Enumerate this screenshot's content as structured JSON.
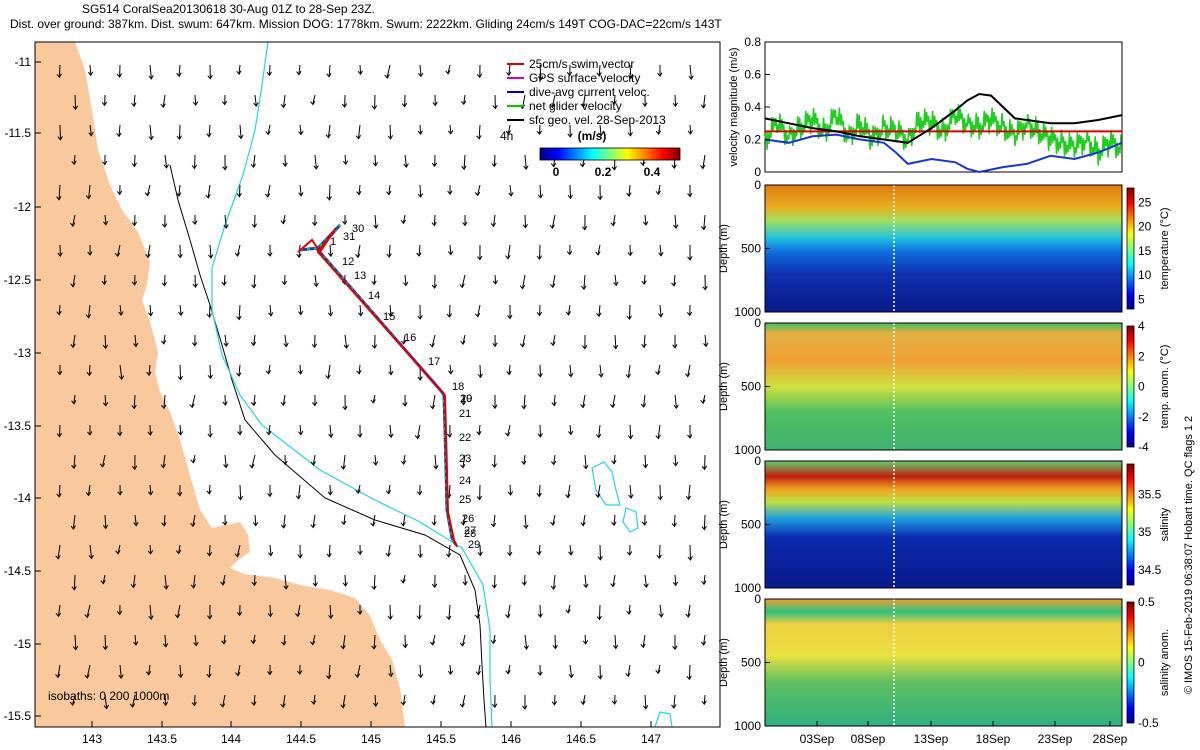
{
  "header": {
    "line1": "SG514 CoralSea20130618 30-Aug 01Z to 28-Sep 23Z.",
    "line2": "Dist. over ground: 387km. Dist. swum: 647km. Mission DOG: 1778km. Swum: 2222km. Gliding 24cm/s 149T COG-DAC=22cm/s 143T"
  },
  "map": {
    "legend": [
      {
        "label": "25cm/s swim vector",
        "color": "#dd0000"
      },
      {
        "label": "GPS surface velocity",
        "color": "#cc00cc"
      },
      {
        "label": "dive-avg current veloc.",
        "color": "#0000cc"
      },
      {
        "label": "net glider velocity",
        "color": "#00cc00"
      },
      {
        "label": "sfc geo. vel. 28-Sep-2013",
        "color": "#000000"
      }
    ],
    "scale_label": "4h",
    "colorbar": {
      "title": "(m/s)",
      "ticks": [
        "0",
        "0.2",
        "0.4"
      ]
    },
    "isobaths_label": "isobaths: 0   200  1000m",
    "xticks": [
      "143",
      "143.5",
      "144",
      "144.5",
      "145",
      "145.5",
      "146",
      "146.5",
      "147"
    ],
    "yticks": [
      "-11",
      "-11.5",
      "-12",
      "-12.5",
      "-13",
      "-13.5",
      "-14",
      "-14.5",
      "-15",
      "-15.5"
    ],
    "day_labels": [
      "30",
      "31",
      "1",
      "12",
      "13",
      "14",
      "15",
      "16",
      "17",
      "18",
      "19",
      "20",
      "21",
      "22",
      "23",
      "24",
      "25",
      "26",
      "27",
      "28",
      "29"
    ],
    "colors": {
      "land": "#f9c89c",
      "isobath200": "#000000",
      "isobath1000": "#22d4e6",
      "track": "#dd0000",
      "dac": "#1a36c8",
      "net": "#22cc22"
    }
  },
  "chart_data": [
    {
      "type": "line",
      "title": "",
      "ylabel": "velocity magnitude (m/s)",
      "ylim": [
        0,
        0.8
      ],
      "yticks": [
        "0",
        "0.2",
        "0.4",
        "0.6",
        "0.8"
      ],
      "xlim_days": [
        0,
        30
      ],
      "series": [
        {
          "name": "sfc geo. vel.",
          "color": "#000000",
          "x": [
            0,
            2,
            4,
            6,
            8,
            10,
            12,
            14,
            16,
            17,
            18,
            19,
            20,
            21,
            22,
            24,
            26,
            28,
            30
          ],
          "values": [
            0.33,
            0.3,
            0.27,
            0.25,
            0.22,
            0.2,
            0.18,
            0.27,
            0.38,
            0.44,
            0.48,
            0.47,
            0.4,
            0.33,
            0.32,
            0.3,
            0.3,
            0.32,
            0.35
          ]
        },
        {
          "name": "swim speed",
          "color": "#dd0000",
          "x": [
            0,
            30
          ],
          "values": [
            0.25,
            0.25
          ]
        },
        {
          "name": "dive-avg current",
          "color": "#1a36c8",
          "x": [
            0,
            2,
            4,
            6,
            8,
            10,
            11,
            12,
            14,
            16,
            17,
            18,
            20,
            22,
            24,
            26,
            28,
            30
          ],
          "values": [
            0.2,
            0.18,
            0.22,
            0.23,
            0.2,
            0.18,
            0.12,
            0.05,
            0.08,
            0.06,
            0.02,
            0.0,
            0.03,
            0.05,
            0.1,
            0.08,
            0.12,
            0.18
          ]
        },
        {
          "name": "net glider velocity",
          "color": "#22cc22",
          "x": [
            0,
            1,
            2,
            3,
            4,
            5,
            6,
            7,
            8,
            9,
            10,
            11,
            12,
            13,
            14,
            15,
            16,
            17,
            18,
            19,
            20,
            21,
            22,
            23,
            24,
            25,
            26,
            27,
            28,
            29,
            30
          ],
          "values": [
            0.2,
            0.3,
            0.22,
            0.28,
            0.32,
            0.25,
            0.35,
            0.22,
            0.3,
            0.2,
            0.28,
            0.25,
            0.2,
            0.32,
            0.3,
            0.25,
            0.35,
            0.3,
            0.28,
            0.32,
            0.28,
            0.22,
            0.3,
            0.25,
            0.2,
            0.18,
            0.15,
            0.2,
            0.12,
            0.18,
            0.15
          ]
        }
      ]
    },
    {
      "type": "heatmap",
      "ylabel": "Depth (m)",
      "yticks": [
        "0",
        "500",
        "1000"
      ],
      "colorbar_label": "temperature (°C)",
      "colorbar_ticks": [
        "25",
        "20",
        "15",
        "10",
        "5"
      ],
      "clim": [
        3,
        28
      ]
    },
    {
      "type": "heatmap",
      "ylabel": "Depth (m)",
      "yticks": [
        "0",
        "500",
        "1000"
      ],
      "colorbar_label": "temp. anom. (°C)",
      "colorbar_ticks": [
        "4",
        "2",
        "0",
        "-2",
        "-4"
      ],
      "clim": [
        -4,
        4
      ]
    },
    {
      "type": "heatmap",
      "ylabel": "Depth (m)",
      "yticks": [
        "0",
        "500",
        "1000"
      ],
      "colorbar_label": "salinity",
      "colorbar_ticks": [
        "35.5",
        "35",
        "34.5"
      ],
      "clim": [
        34.3,
        35.9
      ]
    },
    {
      "type": "heatmap",
      "ylabel": "Depth (m)",
      "yticks": [
        "0",
        "500",
        "1000"
      ],
      "colorbar_label": "salinity anom.",
      "colorbar_ticks": [
        "0.5",
        "0",
        "-0.5"
      ],
      "clim": [
        -0.5,
        0.5
      ]
    }
  ],
  "time_axis": [
    "03Sep",
    "08Sep",
    "13Sep",
    "18Sep",
    "23Sep",
    "28Sep"
  ],
  "credit": "© IMOS 15-Feb-2019 06:38:07 Hobart time. QC flags 1  2"
}
